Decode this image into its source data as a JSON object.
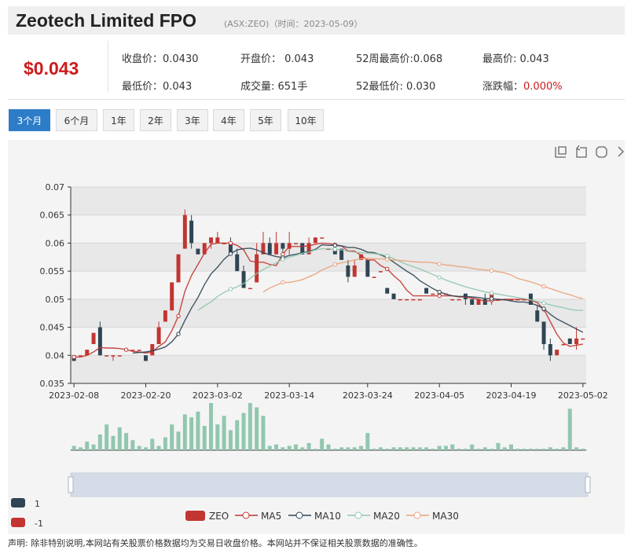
{
  "header": {
    "title": "Zeotech Limited FPO",
    "subtitle": "(ASX:ZEO)（时间：2023-05-09）"
  },
  "quote": {
    "price": "$0.043",
    "close": "收盘价：0.0430",
    "open": "开盘价： 0.043",
    "high52": "52周最高价:0.068",
    "high": "最高价: 0.043",
    "low": "最低价：0.043",
    "volume": "成交量: 651手",
    "low52": "52最低价: 0.030",
    "change_label": "涨跌幅：",
    "change_value": "0.000%"
  },
  "tabs": [
    {
      "label": "3个月",
      "active": true
    },
    {
      "label": "6个月"
    },
    {
      "label": "1年"
    },
    {
      "label": "2年"
    },
    {
      "label": "3年"
    },
    {
      "label": "4年"
    },
    {
      "label": "5年"
    },
    {
      "label": "10年"
    }
  ],
  "toolbar_icons": [
    "zoom-icon",
    "zoom-reset-icon",
    "restore-icon",
    "save-icon"
  ],
  "colors": {
    "up": "#c23531",
    "down": "#2f4554",
    "volume": "#91c7ae",
    "ma5": "#c23531",
    "ma10": "#2f4554",
    "ma20": "#91c7ae",
    "ma30": "#e8a37a"
  },
  "legend": {
    "series": [
      "ZEO",
      "MA5",
      "MA10",
      "MA20",
      "MA30"
    ],
    "side_items": [
      "1",
      "-1"
    ]
  },
  "disclaimer": "声明: 除非特别说明,本网站有关股票价格数据均为交易日收盘价格。本网站并不保证相关股票数据的准确性。",
  "chart_data": {
    "type": "candlestick",
    "x_ticks": [
      "2023-02-08",
      "2023-02-20",
      "2023-03-02",
      "2023-03-14",
      "2023-03-24",
      "2023-04-05",
      "2023-04-19",
      "2023-05-02"
    ],
    "y_ticks": [
      "0.07",
      "0.065",
      "0.06",
      "0.055",
      "0.05",
      "0.045",
      "0.04",
      "0.035"
    ],
    "ylim": [
      0.035,
      0.07
    ],
    "candles": [
      [
        0.04,
        0.039,
        0.04,
        0.039
      ],
      [
        0.04,
        0.04,
        0.04,
        0.04
      ],
      [
        0.04,
        0.041,
        0.041,
        0.04
      ],
      [
        0.042,
        0.044,
        0.044,
        0.042
      ],
      [
        0.045,
        0.04,
        0.046,
        0.04
      ],
      [
        0.04,
        0.04,
        0.04,
        0.04
      ],
      [
        0.04,
        0.04,
        0.04,
        0.039
      ],
      [
        0.04,
        0.04,
        0.04,
        0.04
      ],
      [
        0.041,
        0.041,
        0.041,
        0.041
      ],
      [
        0.041,
        0.041,
        0.041,
        0.041
      ],
      [
        0.041,
        0.041,
        0.041,
        0.041
      ],
      [
        0.04,
        0.039,
        0.04,
        0.039
      ],
      [
        0.04,
        0.042,
        0.042,
        0.04
      ],
      [
        0.042,
        0.045,
        0.046,
        0.042
      ],
      [
        0.046,
        0.048,
        0.048,
        0.046
      ],
      [
        0.048,
        0.053,
        0.053,
        0.048
      ],
      [
        0.053,
        0.058,
        0.058,
        0.053
      ],
      [
        0.059,
        0.065,
        0.066,
        0.059
      ],
      [
        0.064,
        0.06,
        0.065,
        0.059
      ],
      [
        0.059,
        0.058,
        0.059,
        0.058
      ],
      [
        0.058,
        0.06,
        0.06,
        0.058
      ],
      [
        0.06,
        0.061,
        0.061,
        0.059
      ],
      [
        0.06,
        0.061,
        0.062,
        0.06
      ],
      [
        0.06,
        0.06,
        0.06,
        0.06
      ],
      [
        0.06,
        0.058,
        0.061,
        0.058
      ],
      [
        0.058,
        0.055,
        0.059,
        0.055
      ],
      [
        0.055,
        0.052,
        0.056,
        0.052
      ],
      [
        0.052,
        0.052,
        0.052,
        0.052
      ],
      [
        0.053,
        0.058,
        0.06,
        0.053
      ],
      [
        0.058,
        0.06,
        0.062,
        0.058
      ],
      [
        0.06,
        0.058,
        0.061,
        0.058
      ],
      [
        0.058,
        0.06,
        0.062,
        0.058
      ],
      [
        0.06,
        0.059,
        0.06,
        0.058
      ],
      [
        0.059,
        0.06,
        0.062,
        0.058
      ],
      [
        0.06,
        0.06,
        0.06,
        0.06
      ],
      [
        0.06,
        0.058,
        0.06,
        0.058
      ],
      [
        0.058,
        0.06,
        0.061,
        0.058
      ],
      [
        0.06,
        0.061,
        0.061,
        0.06
      ],
      [
        0.061,
        0.061,
        0.061,
        0.061
      ],
      [
        0.059,
        0.059,
        0.059,
        0.059
      ],
      [
        0.059,
        0.058,
        0.059,
        0.058
      ],
      [
        0.059,
        0.057,
        0.059,
        0.057
      ],
      [
        0.056,
        0.054,
        0.057,
        0.053
      ],
      [
        0.054,
        0.056,
        0.057,
        0.054
      ],
      [
        0.057,
        0.058,
        0.058,
        0.057
      ],
      [
        0.057,
        0.054,
        0.057,
        0.054
      ],
      [
        0.054,
        0.054,
        0.054,
        0.054
      ],
      [
        0.055,
        0.055,
        0.055,
        0.055
      ],
      [
        0.052,
        0.051,
        0.052,
        0.051
      ],
      [
        0.051,
        0.05,
        0.051,
        0.05
      ],
      [
        0.05,
        0.05,
        0.05,
        0.05
      ],
      [
        0.05,
        0.05,
        0.05,
        0.05
      ],
      [
        0.05,
        0.05,
        0.05,
        0.05
      ],
      [
        0.05,
        0.05,
        0.05,
        0.05
      ],
      [
        0.052,
        0.051,
        0.052,
        0.051
      ],
      [
        0.051,
        0.051,
        0.051,
        0.051
      ],
      [
        0.051,
        0.051,
        0.051,
        0.051
      ],
      [
        0.051,
        0.051,
        0.051,
        0.051
      ],
      [
        0.05,
        0.05,
        0.05,
        0.05
      ],
      [
        0.05,
        0.05,
        0.05,
        0.05
      ],
      [
        0.051,
        0.05,
        0.051,
        0.049
      ],
      [
        0.05,
        0.049,
        0.05,
        0.049
      ],
      [
        0.049,
        0.05,
        0.05,
        0.049
      ],
      [
        0.05,
        0.049,
        0.051,
        0.049
      ],
      [
        0.05,
        0.051,
        0.051,
        0.049
      ],
      [
        0.05,
        0.05,
        0.05,
        0.05
      ],
      [
        0.05,
        0.05,
        0.05,
        0.05
      ],
      [
        0.05,
        0.05,
        0.05,
        0.05
      ],
      [
        0.05,
        0.05,
        0.05,
        0.05
      ],
      [
        0.05,
        0.05,
        0.05,
        0.05
      ],
      [
        0.051,
        0.049,
        0.051,
        0.049
      ],
      [
        0.048,
        0.046,
        0.049,
        0.046
      ],
      [
        0.046,
        0.042,
        0.046,
        0.041
      ],
      [
        0.042,
        0.04,
        0.043,
        0.039
      ],
      [
        0.04,
        0.041,
        0.041,
        0.04
      ],
      [
        0.042,
        0.042,
        0.042,
        0.042
      ],
      [
        0.043,
        0.042,
        0.043,
        0.042
      ],
      [
        0.042,
        0.043,
        0.045,
        0.041
      ],
      [
        0.043,
        0.043,
        0.043,
        0.043
      ]
    ],
    "volumes": [
      3,
      2,
      6,
      4,
      11,
      18,
      10,
      16,
      12,
      7,
      3,
      2,
      8,
      3,
      9,
      18,
      13,
      25,
      23,
      27,
      17,
      33,
      18,
      24,
      14,
      21,
      26,
      33,
      30,
      24,
      3,
      4,
      2,
      3,
      4,
      2,
      5,
      1,
      8,
      4,
      1,
      2,
      2,
      2,
      3,
      12,
      1,
      2,
      1,
      2,
      2,
      2,
      2,
      2,
      2,
      1,
      3,
      3,
      4,
      1,
      1,
      4,
      1,
      2,
      1,
      5,
      2,
      4,
      1,
      1,
      1,
      1,
      1,
      2,
      1,
      2,
      29,
      2,
      1
    ],
    "moving_averages": {
      "MA5": [
        0.0397,
        0.0397,
        0.04,
        0.0406,
        0.0414,
        0.0413,
        0.0413,
        0.0412,
        0.041,
        0.0407,
        0.0406,
        0.0404,
        0.0406,
        0.0416,
        0.0424,
        0.0444,
        0.047,
        0.0514,
        0.0542,
        0.0562,
        0.0582,
        0.0598,
        0.06,
        0.06,
        0.06,
        0.0596,
        0.0588,
        0.0568,
        0.0566,
        0.0566,
        0.0562,
        0.056,
        0.058,
        0.0594,
        0.0594,
        0.0594,
        0.0595,
        0.0598,
        0.06,
        0.0599,
        0.0597,
        0.0595,
        0.0586,
        0.0586,
        0.0578,
        0.057,
        0.057,
        0.056,
        0.0554,
        0.0542,
        0.0532,
        0.0516,
        0.0506,
        0.0506,
        0.0506,
        0.0506,
        0.0506,
        0.0506,
        0.0506,
        0.0504,
        0.0504,
        0.0502,
        0.05,
        0.0496,
        0.0498,
        0.0498,
        0.05,
        0.05,
        0.05,
        0.05,
        0.0498,
        0.0494,
        0.0482,
        0.046,
        0.0438,
        0.0422,
        0.0416,
        0.0418,
        0.042
      ],
      "MA10": [
        null,
        null,
        null,
        null,
        null,
        null,
        null,
        null,
        null,
        0.0404,
        0.0405,
        0.0406,
        0.0408,
        0.0411,
        0.0415,
        0.0424,
        0.0438,
        0.0462,
        0.0484,
        0.0503,
        0.0526,
        0.0545,
        0.0557,
        0.0571,
        0.0581,
        0.0588,
        0.059,
        0.0591,
        0.0588,
        0.0583,
        0.0579,
        0.0576,
        0.0574,
        0.0578,
        0.058,
        0.0583,
        0.0585,
        0.0589,
        0.0597,
        0.0596,
        0.0596,
        0.0595,
        0.0592,
        0.0592,
        0.0589,
        0.0584,
        0.0583,
        0.0579,
        0.0574,
        0.0566,
        0.0558,
        0.055,
        0.0543,
        0.0533,
        0.0526,
        0.0519,
        0.0513,
        0.0509,
        0.0506,
        0.0505,
        0.0505,
        0.0504,
        0.0503,
        0.0501,
        0.0501,
        0.05,
        0.0499,
        0.0497,
        0.0495,
        0.0495,
        0.0493,
        0.0489,
        0.0483,
        0.0473,
        0.0465,
        0.0459,
        0.0453,
        0.0447,
        0.0441
      ],
      "MA20": [
        null,
        null,
        null,
        null,
        null,
        null,
        null,
        null,
        null,
        null,
        null,
        null,
        null,
        null,
        null,
        null,
        null,
        null,
        null,
        0.048,
        0.0488,
        0.0495,
        0.0505,
        0.0512,
        0.0518,
        0.0522,
        0.0528,
        0.0537,
        0.0546,
        0.0553,
        0.0559,
        0.0565,
        0.0571,
        0.0575,
        0.0578,
        0.0582,
        0.0584,
        0.0588,
        0.059,
        0.059,
        0.0589,
        0.0588,
        0.0585,
        0.0584,
        0.0583,
        0.0582,
        0.0581,
        0.058,
        0.0577,
        0.0572,
        0.0567,
        0.0562,
        0.0558,
        0.0554,
        0.0549,
        0.0544,
        0.0539,
        0.0534,
        0.053,
        0.0526,
        0.0522,
        0.0519,
        0.0516,
        0.0513,
        0.0511,
        0.0509,
        0.0507,
        0.0505,
        0.0503,
        0.0501,
        0.0499,
        0.0496,
        0.0493,
        0.049,
        0.0487,
        0.0485,
        0.0482,
        0.048,
        0.048
      ],
      "MA30": [
        null,
        null,
        null,
        null,
        null,
        null,
        null,
        null,
        null,
        null,
        null,
        null,
        null,
        null,
        null,
        null,
        null,
        null,
        null,
        null,
        null,
        null,
        null,
        null,
        null,
        null,
        null,
        null,
        null,
        0.0513,
        0.052,
        0.0525,
        0.053,
        0.053,
        0.0532,
        0.0535,
        0.054,
        0.0545,
        0.0552,
        0.0557,
        0.0562,
        0.0565,
        0.0567,
        0.057,
        0.0572,
        0.0573,
        0.0572,
        0.0572,
        0.0571,
        0.057,
        0.0569,
        0.0568,
        0.0567,
        0.0566,
        0.0566,
        0.0565,
        0.0563,
        0.0561,
        0.056,
        0.0558,
        0.0557,
        0.0555,
        0.0553,
        0.0552,
        0.0551,
        0.0549,
        0.0547,
        0.0543,
        0.0537,
        0.0534,
        0.0531,
        0.0527,
        0.0523,
        0.0519,
        0.0515,
        0.0511,
        0.0508,
        0.0504,
        0.0501
      ]
    }
  }
}
